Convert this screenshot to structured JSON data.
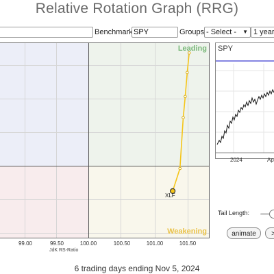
{
  "title": "Relative Rotation Graph (RRG)",
  "toolbar": {
    "symbols_value": "",
    "benchmark_label": "Benchmark:",
    "benchmark_value": "SPY",
    "groups_label": "Groups:",
    "groups_selected": "- Select -",
    "period_selected": "1 year"
  },
  "rrg": {
    "quadrants": {
      "leading": "Leading",
      "weakening": "Weakening"
    },
    "colors": {
      "trail": "#f5c518",
      "point_fill": "#ffffff",
      "point_stroke": "#d9a800",
      "head_fill": "#f5c518",
      "head_stroke": "#333333"
    },
    "x_ticks": [
      "99.00",
      "99.50",
      "100.00",
      "100.50",
      "101.00",
      "101.50"
    ],
    "x_axis_label": "JdK RS-Ratio"
  },
  "chart_data": {
    "type": "scatter",
    "xlabel": "JdK RS-Ratio",
    "ylabel": "",
    "xlim": [
      98.55,
      101.75
    ],
    "ylim": [
      98.3,
      102.3
    ],
    "series": [
      {
        "name": "XLF",
        "x": [
          101.43,
          101.4,
          101.37,
          101.34,
          101.29,
          101.18
        ],
        "y": [
          102.1,
          101.7,
          101.21,
          100.78,
          99.74,
          99.28
        ]
      }
    ]
  },
  "spy_panel": {
    "title": "SPY",
    "x_labels": [
      "2024",
      "Apr"
    ]
  },
  "footer": "6 trading days ending Nov 5, 2024",
  "controls": {
    "tail_label": "Tail Length:",
    "animate_label": "animate",
    "next_label": ">"
  }
}
